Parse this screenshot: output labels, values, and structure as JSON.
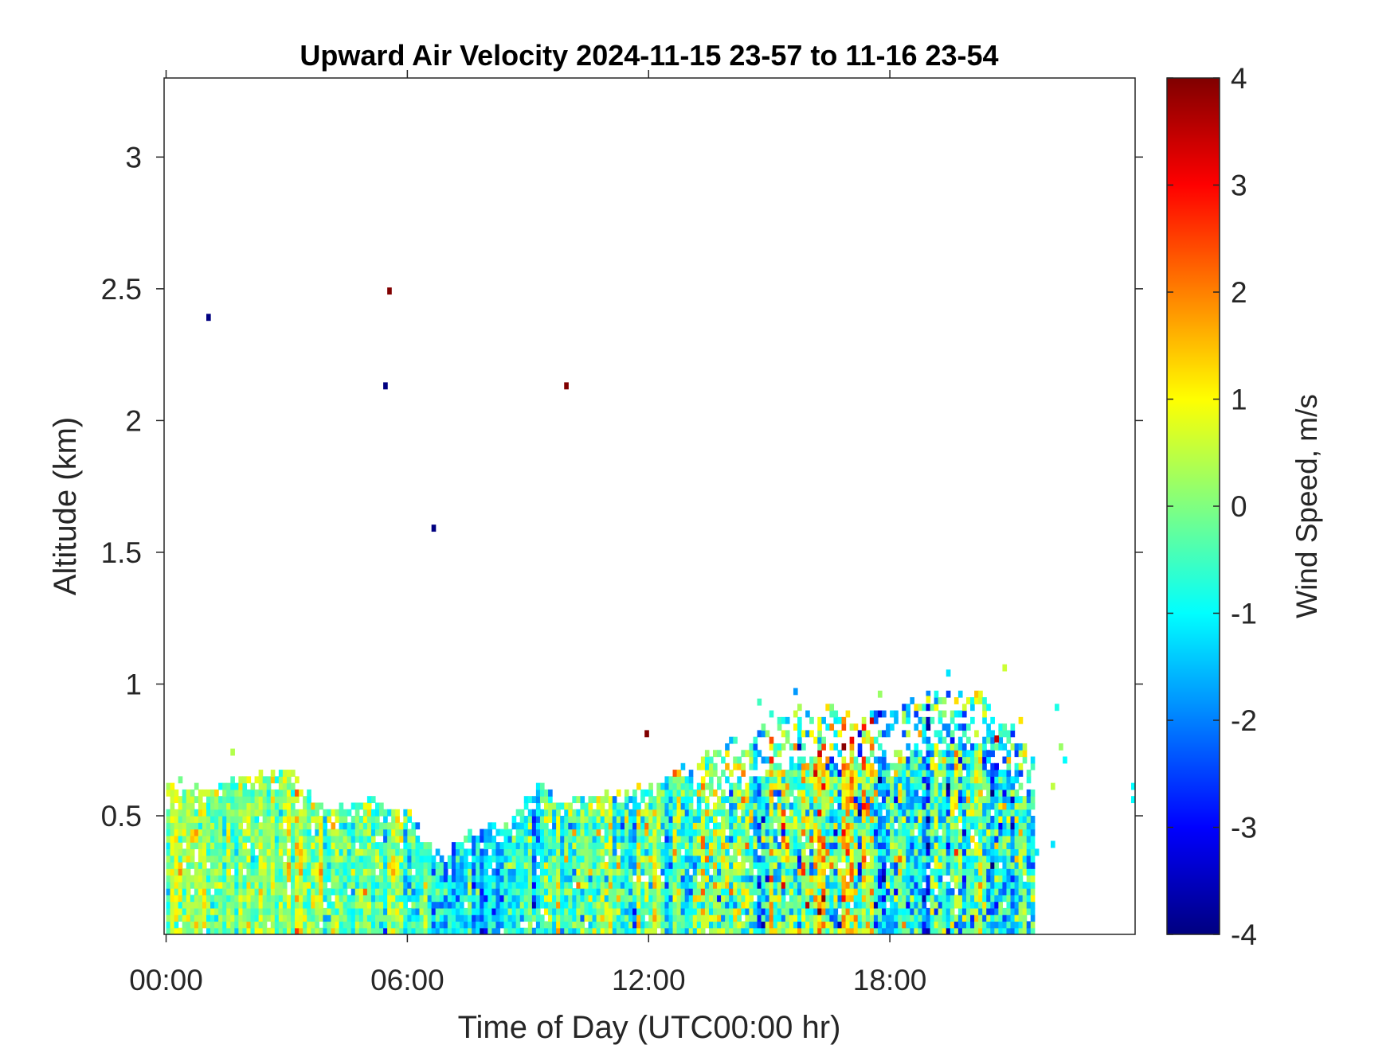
{
  "chart_data": {
    "type": "heatmap",
    "title": "Upward Air Velocity 2024-11-15 23-57 to 11-16 23-54",
    "xlabel": "Time of Day (UTC00:00 hr)",
    "ylabel": "Altitude (km)",
    "colorbar_label": "Wind Speed, m/s",
    "x_unit": "hours",
    "xlim": [
      -0.05,
      24.1
    ],
    "ylim": [
      0.05,
      3.3
    ],
    "x_ticks": [
      0,
      6,
      12,
      18
    ],
    "x_tick_labels": [
      "00:00",
      "06:00",
      "12:00",
      "18:00"
    ],
    "y_ticks": [
      0.5,
      1,
      1.5,
      2,
      2.5,
      3
    ],
    "y_tick_labels": [
      "0.5",
      "1",
      "1.5",
      "2",
      "2.5",
      "3"
    ],
    "clim": [
      -4,
      4
    ],
    "colorbar_ticks": [
      -4,
      -3,
      -2,
      -1,
      0,
      1,
      2,
      3,
      4
    ],
    "colorbar_tick_labels": [
      "-4",
      "-3",
      "-2",
      "-1",
      "0",
      "1",
      "2",
      "3",
      "4"
    ],
    "colormap": "jet",
    "grid": false,
    "cell_size": {
      "time_hours": 0.1,
      "altitude_km": 0.025
    },
    "echo_top": [
      {
        "time": 0.0,
        "top_km": 0.62
      },
      {
        "time": 1.0,
        "top_km": 0.6
      },
      {
        "time": 1.6,
        "top_km": 0.62
      },
      {
        "time": 2.3,
        "top_km": 0.65
      },
      {
        "time": 3.0,
        "top_km": 0.67
      },
      {
        "time": 3.4,
        "top_km": 0.58
      },
      {
        "time": 4.0,
        "top_km": 0.52
      },
      {
        "time": 5.2,
        "top_km": 0.55
      },
      {
        "time": 5.9,
        "top_km": 0.5
      },
      {
        "time": 6.8,
        "top_km": 0.33
      },
      {
        "time": 7.5,
        "top_km": 0.43
      },
      {
        "time": 8.5,
        "top_km": 0.46
      },
      {
        "time": 9.1,
        "top_km": 0.6
      },
      {
        "time": 10.0,
        "top_km": 0.55
      },
      {
        "time": 11.0,
        "top_km": 0.57
      },
      {
        "time": 12.0,
        "top_km": 0.6
      },
      {
        "time": 13.0,
        "top_km": 0.68
      },
      {
        "time": 14.0,
        "top_km": 0.8
      },
      {
        "time": 15.0,
        "top_km": 0.86
      },
      {
        "time": 15.8,
        "top_km": 0.9
      },
      {
        "time": 17.0,
        "top_km": 0.88
      },
      {
        "time": 18.3,
        "top_km": 0.92
      },
      {
        "time": 19.3,
        "top_km": 0.95
      },
      {
        "time": 20.2,
        "top_km": 0.97
      },
      {
        "time": 21.5,
        "top_km": 0.72
      }
    ],
    "regions": [
      {
        "t0": 0.0,
        "t1": 3.5,
        "mean": 0.15,
        "spread": 0.7
      },
      {
        "t0": 3.5,
        "t1": 6.6,
        "mean": -0.25,
        "spread": 0.8
      },
      {
        "t0": 6.6,
        "t1": 9.5,
        "mean": -1.1,
        "spread": 0.9
      },
      {
        "t0": 9.5,
        "t1": 13.0,
        "mean": -0.4,
        "spread": 1.0
      },
      {
        "t0": 13.0,
        "t1": 15.5,
        "mean": -0.4,
        "spread": 1.3
      },
      {
        "t0": 15.5,
        "t1": 17.5,
        "mean": 0.3,
        "spread": 1.5
      },
      {
        "t0": 17.5,
        "t1": 21.6,
        "mean": -0.8,
        "spread": 1.3
      }
    ],
    "isolated_points": [
      {
        "time": 1.0,
        "alt": 2.38,
        "value": -4
      },
      {
        "time": 5.5,
        "alt": 2.48,
        "value": 4
      },
      {
        "time": 5.4,
        "alt": 2.12,
        "value": -4
      },
      {
        "time": 9.9,
        "alt": 2.12,
        "value": 4
      },
      {
        "time": 6.6,
        "alt": 1.58,
        "value": -4
      },
      {
        "time": 11.9,
        "alt": 0.8,
        "value": 4
      },
      {
        "time": 24.0,
        "alt": 0.6,
        "value": -1
      },
      {
        "time": 24.0,
        "alt": 0.55,
        "value": -1
      },
      {
        "time": 22.1,
        "alt": 0.9,
        "value": -0.8
      },
      {
        "time": 22.2,
        "alt": 0.75,
        "value": 0.2
      },
      {
        "time": 22.3,
        "alt": 0.7,
        "value": -1
      },
      {
        "time": 22.0,
        "alt": 0.6,
        "value": 0.5
      },
      {
        "time": 22.0,
        "alt": 0.38,
        "value": -1.2
      },
      {
        "time": 21.6,
        "alt": 0.35,
        "value": -1.2
      },
      {
        "time": 21.2,
        "alt": 0.85,
        "value": 1.2
      },
      {
        "time": 20.8,
        "alt": 1.05,
        "value": 0.6
      },
      {
        "time": 19.4,
        "alt": 1.03,
        "value": -1.2
      },
      {
        "time": 18.9,
        "alt": 0.93,
        "value": 0.9
      },
      {
        "time": 17.7,
        "alt": 0.95,
        "value": 0.2
      },
      {
        "time": 15.6,
        "alt": 0.96,
        "value": -1.8
      },
      {
        "time": 14.7,
        "alt": 0.92,
        "value": -0.5
      },
      {
        "time": 1.6,
        "alt": 0.73,
        "value": 0.4
      },
      {
        "time": 20.6,
        "alt": 0.78,
        "value": 3.5
      }
    ],
    "seed": 20241116
  }
}
